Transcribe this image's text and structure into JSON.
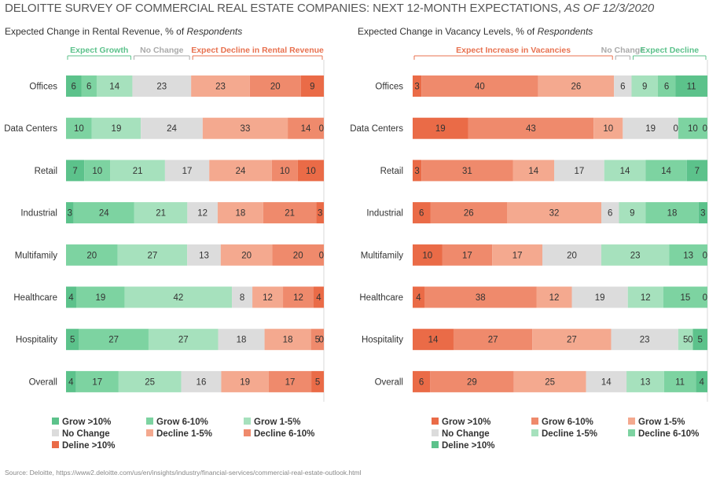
{
  "title_main": "DELOITTE SURVEY OF COMMERCIAL REAL ESTATE COMPANIES: NEXT 12-MONTH EXPECTATIONS, ",
  "title_date": "AS OF 12/3/2020",
  "source": "Source: Deloitte, https://www2.deloitte.com/us/en/insights/industry/financial-services/commercial-real-estate-outlook.html",
  "chart_data": [
    {
      "type": "bar",
      "orientation": "horizontal-stacked",
      "title": "Expected Change in Rental Revenue, % of ",
      "title_italic": "Respondents",
      "categories": [
        "Offices",
        "Data Centers",
        "Retail",
        "Industrial",
        "Multifamily",
        "Healthcare",
        "Hospitality",
        "Overall"
      ],
      "series": [
        {
          "name": "Grow >10%",
          "color": "#5cc28b",
          "values": [
            6,
            0,
            7,
            3,
            0,
            4,
            5,
            4
          ]
        },
        {
          "name": "Grow 6-10%",
          "color": "#7dd3a1",
          "values": [
            6,
            10,
            10,
            24,
            20,
            19,
            27,
            17
          ]
        },
        {
          "name": "Grow 1-5%",
          "color": "#a6e1bd",
          "values": [
            14,
            19,
            21,
            21,
            27,
            42,
            27,
            25
          ]
        },
        {
          "name": "No Change",
          "color": "#dcdcdc",
          "values": [
            23,
            24,
            17,
            12,
            13,
            8,
            18,
            16
          ]
        },
        {
          "name": "Decline 1-5%",
          "color": "#f4a98f",
          "values": [
            23,
            33,
            24,
            18,
            20,
            12,
            18,
            19
          ]
        },
        {
          "name": "Decline 6-10%",
          "color": "#ef8a6c",
          "values": [
            20,
            14,
            10,
            21,
            20,
            12,
            5,
            17
          ]
        },
        {
          "name": "Deline >10%",
          "color": "#ea6b47",
          "values": [
            9,
            0,
            10,
            3,
            0,
            4,
            0,
            5
          ]
        }
      ],
      "groups": [
        {
          "label": "Expect Growth",
          "color": "#5cc28b",
          "series": [
            0,
            1,
            2
          ]
        },
        {
          "label": "No Change",
          "color": "#aaaaaa",
          "series": [
            3
          ]
        },
        {
          "label": "Expect Decline in Rental Revenue",
          "color": "#e8714f",
          "series": [
            4,
            5,
            6
          ]
        }
      ]
    },
    {
      "type": "bar",
      "orientation": "horizontal-stacked",
      "title": "Expected Change in Vacancy Levels, % of ",
      "title_italic": "Respondents",
      "categories": [
        "Offices",
        "Data Centers",
        "Retail",
        "Industrial",
        "Multifamily",
        "Healthcare",
        "Hospitality",
        "Overall"
      ],
      "series": [
        {
          "name": "Grow >10%",
          "color": "#ea6b47",
          "values": [
            3,
            19,
            3,
            6,
            10,
            4,
            14,
            6
          ]
        },
        {
          "name": "Grow 6-10%",
          "color": "#ef8a6c",
          "values": [
            40,
            43,
            31,
            26,
            17,
            38,
            27,
            29
          ]
        },
        {
          "name": "Grow 1-5%",
          "color": "#f4a98f",
          "values": [
            26,
            10,
            14,
            32,
            17,
            12,
            27,
            25
          ]
        },
        {
          "name": "No Change",
          "color": "#dcdcdc",
          "values": [
            6,
            19,
            17,
            6,
            20,
            19,
            23,
            14
          ]
        },
        {
          "name": "Decline 1-5%",
          "color": "#a6e1bd",
          "values": [
            9,
            0,
            14,
            9,
            23,
            12,
            5,
            13
          ]
        },
        {
          "name": "Decline 6-10%",
          "color": "#7dd3a1",
          "values": [
            6,
            10,
            14,
            18,
            13,
            15,
            0,
            11
          ]
        },
        {
          "name": "Deline >10%",
          "color": "#5cc28b",
          "values": [
            11,
            0,
            7,
            3,
            0,
            0,
            5,
            4
          ]
        }
      ],
      "groups": [
        {
          "label": "Expect Increase in Vacancies",
          "color": "#e8714f",
          "series": [
            0,
            1,
            2
          ]
        },
        {
          "label": "No Change",
          "color": "#aaaaaa",
          "series": [
            3
          ]
        },
        {
          "label": "Expect Decline",
          "color": "#5cc28b",
          "series": [
            4,
            5,
            6
          ]
        }
      ]
    }
  ]
}
